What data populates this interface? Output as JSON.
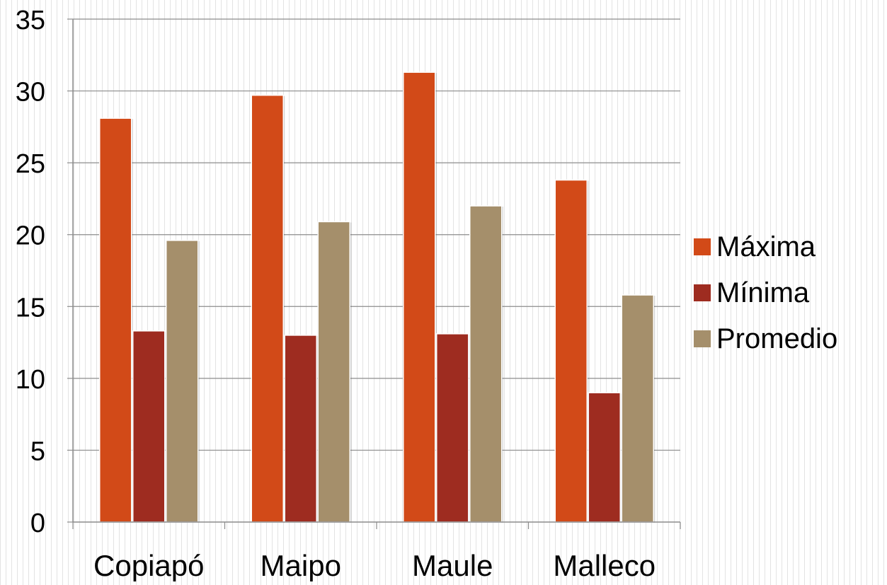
{
  "chart_data": {
    "type": "bar",
    "title": "",
    "xlabel": "",
    "ylabel": "",
    "categories": [
      "Copiapó",
      "Maipo",
      "Maule",
      "Malleco"
    ],
    "series": [
      {
        "name": "Máxima",
        "values": [
          28.1,
          29.7,
          31.3,
          23.8
        ]
      },
      {
        "name": "Mínima",
        "values": [
          13.3,
          13.0,
          13.1,
          9.0
        ]
      },
      {
        "name": "Promedio",
        "values": [
          19.6,
          20.9,
          22.0,
          15.8
        ]
      }
    ],
    "ylim": [
      0,
      35
    ],
    "yticks": [
      "0",
      "5",
      "10",
      "15",
      "20",
      "25",
      "30",
      "35"
    ],
    "grid": true,
    "legend_position": "right"
  },
  "colors": {
    "Máxima": "#d24a18",
    "Mínima": "#9e2c20",
    "Promedio": "#a58f6b",
    "gridline": "#8c8c8c",
    "axis": "#8c8c8c"
  }
}
